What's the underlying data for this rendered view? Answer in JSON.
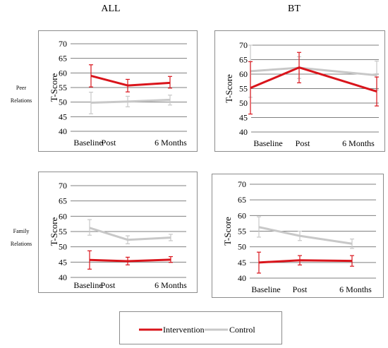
{
  "col_titles": [
    "ALL",
    "BT"
  ],
  "row_labels": [
    {
      "line1": "Peer",
      "line2": "Relations"
    },
    {
      "line1": "Family",
      "line2": "Relations"
    }
  ],
  "legend": {
    "intervention": "Intervention",
    "control": "Control"
  },
  "colors": {
    "intervention": "#d9141b",
    "control": "#c8c8c8",
    "grid": "#7f7f7f",
    "border": "#8c8c8c"
  },
  "chart_data": [
    {
      "type": "line",
      "title": "",
      "row": "Peer Relations",
      "column": "ALL",
      "ylabel": "T-Score",
      "ylim": [
        40,
        70
      ],
      "yticks": [
        40,
        45,
        50,
        55,
        60,
        65,
        70
      ],
      "x": [
        "Baseline",
        "Post",
        "6 Months"
      ],
      "series": [
        {
          "name": "Intervention",
          "values": [
            59,
            55.7,
            56.6
          ],
          "err_low": [
            55.2,
            53.5,
            54.8
          ],
          "err_high": [
            62.8,
            57.8,
            58.8
          ]
        },
        {
          "name": "Control",
          "values": [
            49.8,
            50.2,
            50.8
          ],
          "err_low": [
            46,
            48.4,
            49
          ],
          "err_high": [
            53.4,
            52,
            52.4
          ]
        }
      ]
    },
    {
      "type": "line",
      "title": "",
      "row": "Peer Relations",
      "column": "BT",
      "ylabel": "T-Score",
      "ylim": [
        40,
        70
      ],
      "yticks": [
        40,
        45,
        50,
        55,
        60,
        65,
        70
      ],
      "x": [
        "Baseline",
        "Post",
        "6 Months"
      ],
      "series": [
        {
          "name": "Intervention",
          "values": [
            55.2,
            62.3,
            54
          ],
          "err_low": [
            46.2,
            57,
            49
          ],
          "err_high": [
            64.3,
            67.5,
            59
          ]
        },
        {
          "name": "Control",
          "values": [
            61,
            62.2,
            59.6
          ],
          "err_low": [
            52,
            58.5,
            54.5
          ],
          "err_high": [
            70,
            66,
            64.5
          ]
        }
      ]
    },
    {
      "type": "line",
      "title": "",
      "row": "Family Relations",
      "column": "ALL",
      "ylabel": "T-Score",
      "ylim": [
        40,
        70
      ],
      "yticks": [
        40,
        45,
        50,
        55,
        60,
        65,
        70
      ],
      "x": [
        "Baseline",
        "Post",
        "6 Months"
      ],
      "series": [
        {
          "name": "Intervention",
          "values": [
            45.7,
            45.3,
            45.8
          ],
          "err_low": [
            42.7,
            44.1,
            44.9
          ],
          "err_high": [
            48.7,
            46.6,
            46.8
          ]
        },
        {
          "name": "Control",
          "values": [
            56.2,
            52.3,
            53
          ],
          "err_low": [
            53.8,
            51,
            52
          ],
          "err_high": [
            58.9,
            53.6,
            54.1
          ]
        }
      ]
    },
    {
      "type": "line",
      "title": "",
      "row": "Family Relations",
      "column": "BT",
      "ylabel": "T-Score",
      "ylim": [
        40,
        70
      ],
      "yticks": [
        40,
        45,
        50,
        55,
        60,
        65,
        70
      ],
      "x": [
        "Baseline",
        "Post",
        "6 Months"
      ],
      "series": [
        {
          "name": "Intervention",
          "values": [
            45,
            45.7,
            45.5
          ],
          "err_low": [
            41.6,
            44.2,
            43.8
          ],
          "err_high": [
            48.3,
            47.2,
            47.2
          ]
        },
        {
          "name": "Control",
          "values": [
            56.3,
            53.5,
            51
          ],
          "err_low": [
            53.1,
            52,
            49.5
          ],
          "err_high": [
            59.6,
            55,
            52.5
          ]
        }
      ]
    }
  ]
}
